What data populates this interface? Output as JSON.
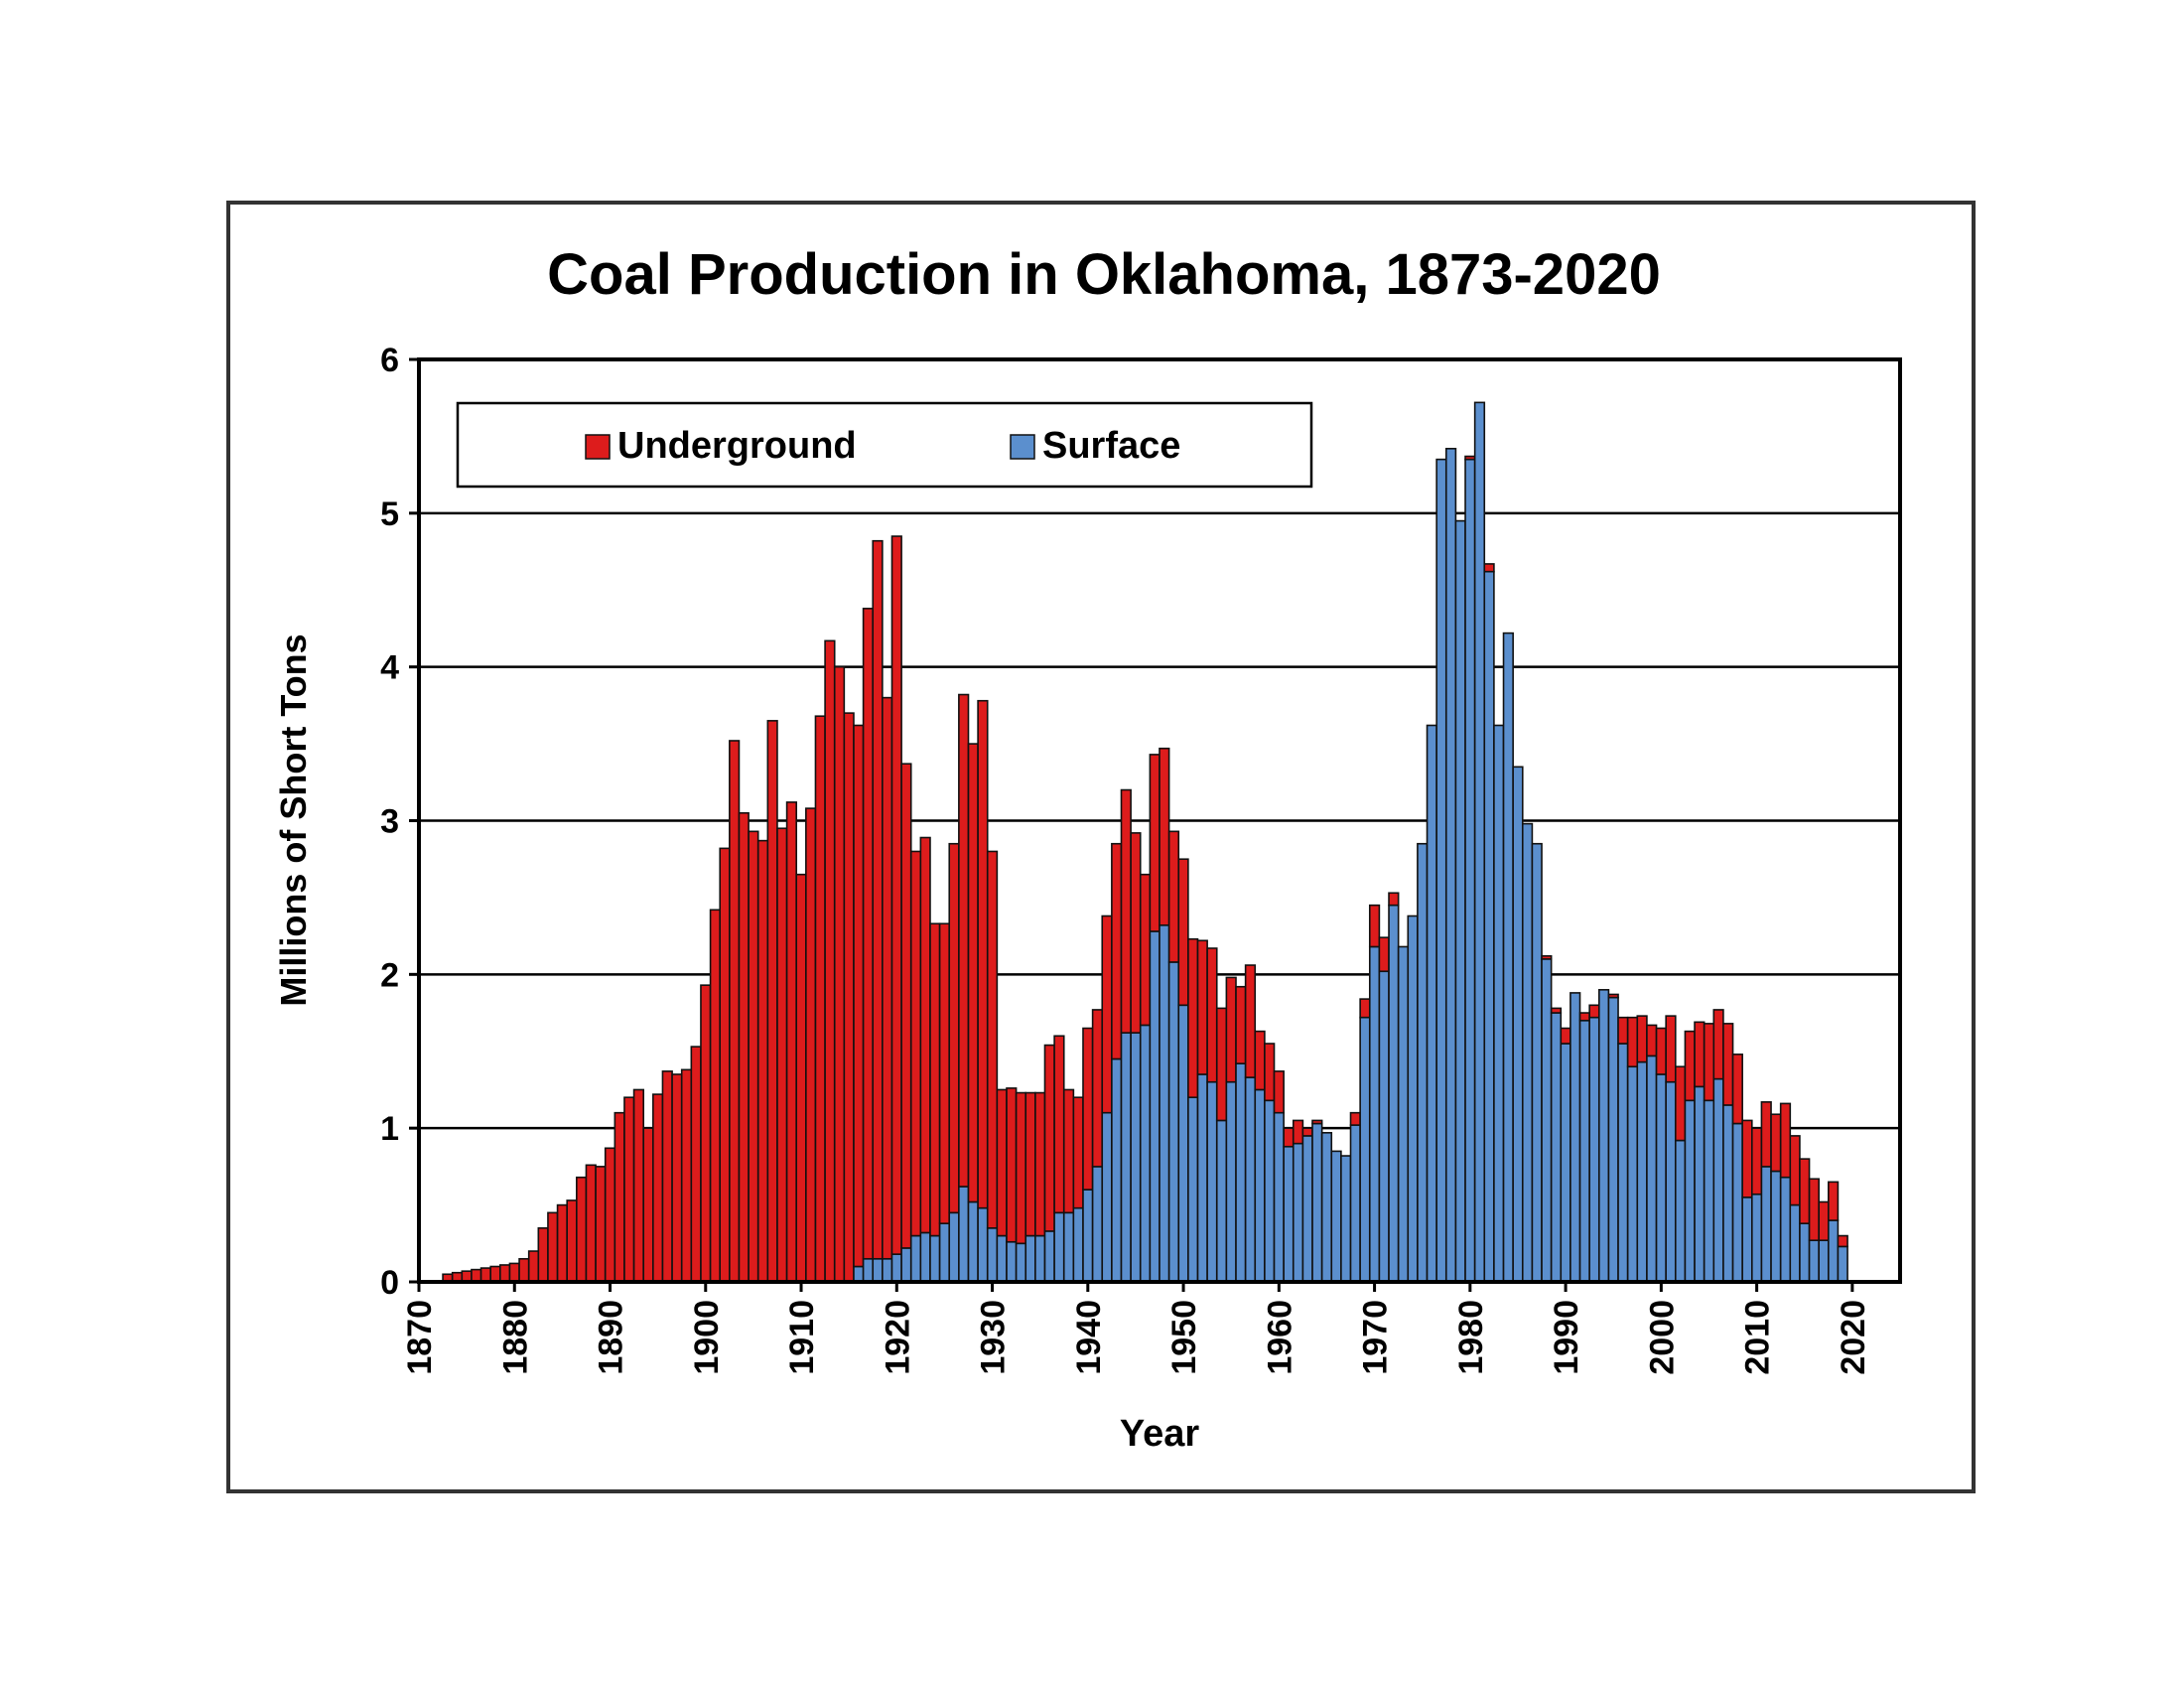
{
  "chart_data": {
    "type": "bar",
    "stacked": true,
    "title": "Coal Production in Oklahoma, 1873-2020",
    "xlabel": "Year",
    "ylabel": "Millions of Short Tons",
    "xlim": [
      1870,
      2025
    ],
    "ylim": [
      0,
      6
    ],
    "x_ticks": [
      "1870",
      "1880",
      "1890",
      "1900",
      "1910",
      "1920",
      "1930",
      "1940",
      "1950",
      "1960",
      "1970",
      "1980",
      "1990",
      "2000",
      "2010",
      "2020"
    ],
    "y_ticks": [
      "0",
      "1",
      "2",
      "3",
      "4",
      "5",
      "6"
    ],
    "grid": true,
    "legend_position": "top-left",
    "colors": {
      "underground": "#dd1c1c",
      "surface": "#5b8fce",
      "outline": "#111111"
    },
    "years": [
      1873,
      1874,
      1875,
      1876,
      1877,
      1878,
      1879,
      1880,
      1881,
      1882,
      1883,
      1884,
      1885,
      1886,
      1887,
      1888,
      1889,
      1890,
      1891,
      1892,
      1893,
      1894,
      1895,
      1896,
      1897,
      1898,
      1899,
      1900,
      1901,
      1902,
      1903,
      1904,
      1905,
      1906,
      1907,
      1908,
      1909,
      1910,
      1911,
      1912,
      1913,
      1914,
      1915,
      1916,
      1917,
      1918,
      1919,
      1920,
      1921,
      1922,
      1923,
      1924,
      1925,
      1926,
      1927,
      1928,
      1929,
      1930,
      1931,
      1932,
      1933,
      1934,
      1935,
      1936,
      1937,
      1938,
      1939,
      1940,
      1941,
      1942,
      1943,
      1944,
      1945,
      1946,
      1947,
      1948,
      1949,
      1950,
      1951,
      1952,
      1953,
      1954,
      1955,
      1956,
      1957,
      1958,
      1959,
      1960,
      1961,
      1962,
      1963,
      1964,
      1965,
      1966,
      1967,
      1968,
      1969,
      1970,
      1971,
      1972,
      1973,
      1974,
      1975,
      1976,
      1977,
      1978,
      1979,
      1980,
      1981,
      1982,
      1983,
      1984,
      1985,
      1986,
      1987,
      1988,
      1989,
      1990,
      1991,
      1992,
      1993,
      1994,
      1995,
      1996,
      1997,
      1998,
      1999,
      2000,
      2001,
      2002,
      2003,
      2004,
      2005,
      2006,
      2007,
      2008,
      2009,
      2010,
      2011,
      2012,
      2013,
      2014,
      2015,
      2016,
      2017,
      2018,
      2019
    ],
    "series": [
      {
        "name": "Surface",
        "values": [
          0,
          0,
          0,
          0,
          0,
          0,
          0,
          0,
          0,
          0,
          0,
          0,
          0,
          0,
          0,
          0,
          0,
          0,
          0,
          0,
          0,
          0,
          0,
          0,
          0,
          0,
          0,
          0,
          0,
          0,
          0,
          0,
          0,
          0,
          0,
          0,
          0,
          0,
          0,
          0,
          0,
          0,
          0,
          0.1,
          0.15,
          0.15,
          0.15,
          0.18,
          0.22,
          0.3,
          0.32,
          0.3,
          0.38,
          0.45,
          0.62,
          0.52,
          0.48,
          0.35,
          0.3,
          0.26,
          0.25,
          0.3,
          0.3,
          0.33,
          0.45,
          0.45,
          0.48,
          0.6,
          0.75,
          1.1,
          1.45,
          1.62,
          1.62,
          1.67,
          2.28,
          2.32,
          2.08,
          1.8,
          1.2,
          1.35,
          1.3,
          1.05,
          1.3,
          1.42,
          1.33,
          1.25,
          1.18,
          1.1,
          0.88,
          0.9,
          0.95,
          1.03,
          0.97,
          0.85,
          0.82,
          1.02,
          1.72,
          2.18,
          2.02,
          2.45,
          2.18,
          2.38,
          2.85,
          3.62,
          5.35,
          5.42,
          4.95,
          5.35,
          5.72,
          4.62,
          3.62,
          4.22,
          3.35,
          2.98,
          2.85,
          2.1,
          1.75,
          1.55,
          1.88,
          1.7,
          1.72,
          1.9,
          1.85,
          1.55,
          1.4,
          1.43,
          1.47,
          1.35,
          1.3,
          0.92,
          1.18,
          1.27,
          1.18,
          1.32,
          1.15,
          1.03,
          0.55,
          0.57,
          0.75,
          0.72,
          0.68,
          0.5,
          0.38,
          0.27,
          0.27,
          0.4,
          0.23
        ]
      },
      {
        "name": "Underground",
        "values": [
          0.05,
          0.06,
          0.07,
          0.08,
          0.09,
          0.1,
          0.11,
          0.12,
          0.15,
          0.2,
          0.35,
          0.45,
          0.5,
          0.53,
          0.68,
          0.76,
          0.75,
          0.87,
          1.1,
          1.2,
          1.25,
          1.0,
          1.22,
          1.37,
          1.35,
          1.38,
          1.53,
          1.93,
          2.42,
          2.82,
          3.52,
          3.05,
          2.93,
          2.87,
          3.65,
          2.95,
          3.12,
          2.65,
          3.08,
          3.68,
          4.17,
          4.0,
          3.7,
          3.52,
          4.23,
          4.67,
          3.65,
          4.67,
          3.15,
          2.5,
          2.57,
          2.03,
          1.95,
          2.4,
          3.2,
          2.98,
          3.3,
          2.45,
          0.95,
          1.0,
          0.98,
          0.93,
          0.93,
          1.21,
          1.15,
          0.8,
          0.72,
          1.05,
          1.02,
          1.28,
          1.4,
          1.58,
          1.3,
          0.98,
          1.15,
          1.15,
          0.85,
          0.95,
          1.03,
          0.87,
          0.87,
          0.73,
          0.68,
          0.5,
          0.73,
          0.38,
          0.37,
          0.27,
          0.12,
          0.15,
          0.05,
          0.02,
          0,
          0,
          0,
          0.08,
          0.12,
          0.27,
          0.22,
          0.08,
          0,
          0,
          0,
          0,
          0,
          0,
          0,
          0.02,
          0,
          0.05,
          0,
          0,
          0,
          0,
          0,
          0.02,
          0.03,
          0.1,
          0,
          0.05,
          0.08,
          0,
          0.02,
          0.17,
          0.32,
          0.3,
          0.2,
          0.3,
          0.43,
          0.48,
          0.45,
          0.42,
          0.5,
          0.45,
          0.53,
          0.45,
          0.5,
          0.43,
          0.42,
          0.37,
          0.48,
          0.45,
          0.42,
          0.4,
          0.25,
          0.25,
          0.07
        ]
      }
    ]
  },
  "legend": {
    "underground_label": "Underground",
    "surface_label": "Surface"
  }
}
